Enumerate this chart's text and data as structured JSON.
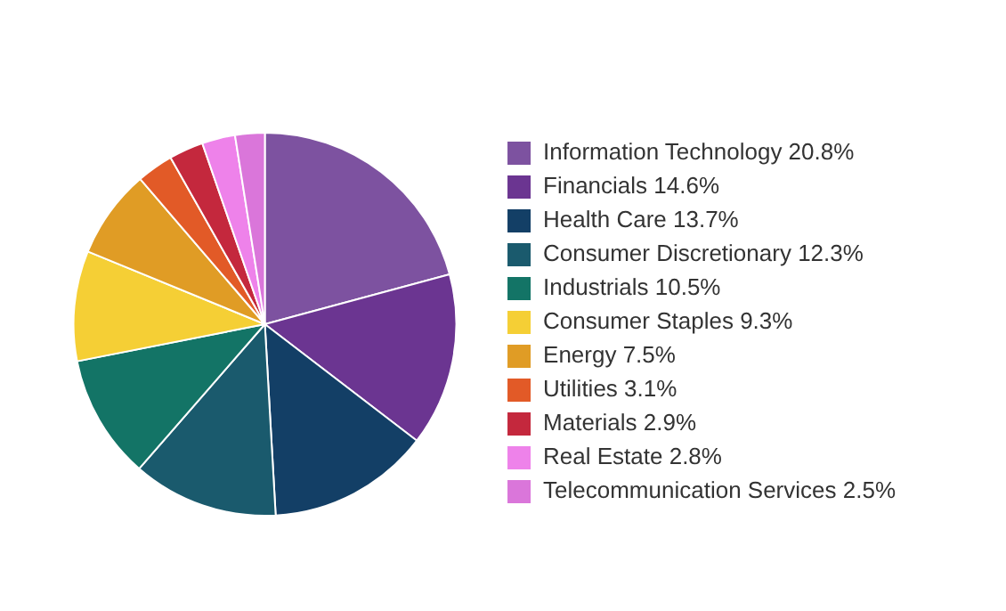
{
  "chart_data": {
    "type": "pie",
    "categories": [
      "Information Technology 20.8%",
      "Financials 14.6%",
      "Health Care 13.7%",
      "Consumer Discretionary 12.3%",
      "Industrials 10.5%",
      "Consumer Staples 9.3%",
      "Energy 7.5%",
      "Utilities 3.1%",
      "Materials 2.9%",
      "Real Estate 2.8%",
      "Telecommunication Services 2.5%"
    ],
    "values": [
      20.8,
      14.6,
      13.7,
      12.3,
      10.5,
      9.3,
      7.5,
      3.1,
      2.9,
      2.8,
      2.5
    ],
    "colors": [
      "#7d52a0",
      "#6b3591",
      "#133f66",
      "#1a5a6d",
      "#137466",
      "#f5cf35",
      "#e09c25",
      "#e25a27",
      "#c4283d",
      "#ee82ea",
      "#da76da"
    ],
    "legend": "right"
  }
}
